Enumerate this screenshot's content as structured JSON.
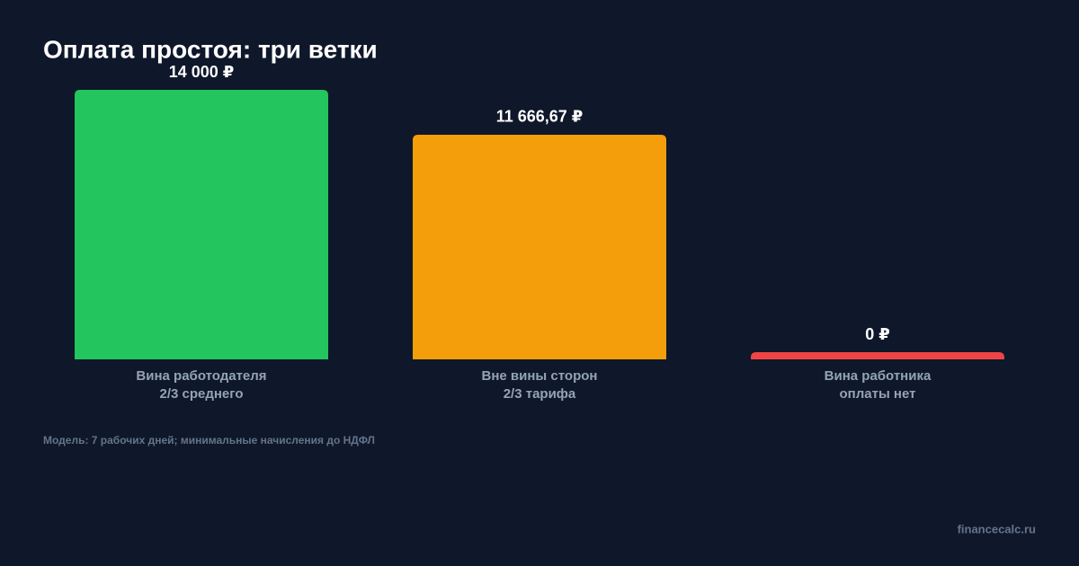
{
  "chart_data": {
    "type": "bar",
    "title": "Оплата простоя: три ветки",
    "categories": [
      "Вина работодателя\n2/3 среднего",
      "Вне вины сторон\n2/3 тарифа",
      "Вина работника\nоплаты нет"
    ],
    "values": [
      14000,
      11666.67,
      0
    ],
    "value_labels": [
      "14 000 ₽",
      "11 666,67 ₽",
      "0 ₽"
    ],
    "colors": [
      "#22c55e",
      "#f59e0b",
      "#ef4444"
    ],
    "ylim": [
      0,
      14000
    ],
    "grid": false,
    "annotation": "Модель: 7 рабочих дней; минимальные начисления до НДФЛ",
    "source": "financecalc.ru"
  }
}
